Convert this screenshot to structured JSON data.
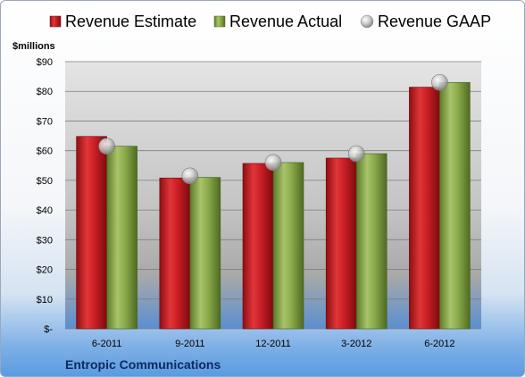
{
  "chart_data": {
    "type": "bar",
    "title": "",
    "ylabel": "$millions",
    "categories": [
      "6-2011",
      "9-2011",
      "12-2011",
      "3-2012",
      "6-2012"
    ],
    "series": [
      {
        "name": "Revenue Estimate",
        "type": "bar",
        "color": "#c81e24",
        "values": [
          64.8,
          50.8,
          55.7,
          57.5,
          81.4
        ]
      },
      {
        "name": "Revenue Actual",
        "type": "bar",
        "color": "#8aaa4a",
        "values": [
          61.5,
          51.0,
          56.0,
          59.0,
          83.0
        ]
      },
      {
        "name": "Revenue GAAP",
        "type": "marker",
        "color": "#b8b8b8",
        "values": [
          61.5,
          51.5,
          56.0,
          59.0,
          83.0
        ]
      }
    ],
    "ylim": [
      0,
      90
    ],
    "yticks": [
      0,
      10,
      20,
      30,
      40,
      50,
      60,
      70,
      80,
      90
    ],
    "ytick_labels": [
      "$-",
      "$10",
      "$20",
      "$30",
      "$40",
      "$50",
      "$60",
      "$70",
      "$80",
      "$90"
    ],
    "grid": true,
    "legend": "top"
  },
  "company": "Entropic Communications"
}
